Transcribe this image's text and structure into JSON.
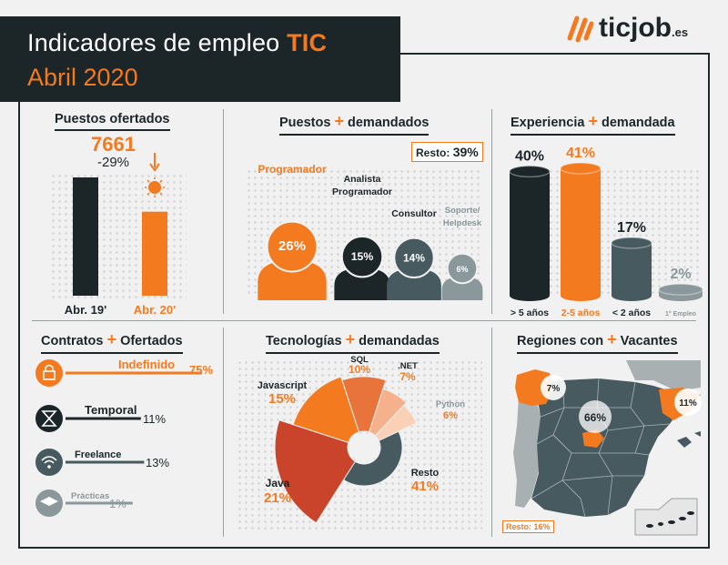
{
  "header": {
    "title_prefix": "Indicadores de empleo ",
    "title_highlight": "TIC",
    "subtitle": "Abril 2020"
  },
  "logo": {
    "text": "ticjob",
    "suffix": ".es"
  },
  "colors": {
    "orange": "#f47a20",
    "dark": "#1c2528",
    "slate": "#475a5f",
    "grey": "#8a989b",
    "bg": "#f1f1f1"
  },
  "puestos_ofertados": {
    "title": "Puestos ofertados",
    "value": "7661",
    "change": "-29%",
    "icon": "coronavirus-icon"
  },
  "puestos_demandados": {
    "title_pre": "Puestos",
    "title_post": "demandados",
    "resto_label": "Resto:",
    "resto_value": "39%"
  },
  "experiencia": {
    "title_pre": "Experiencia",
    "title_post": "demandada"
  },
  "contratos": {
    "title_pre": "Contratos",
    "title_post": "Ofertados",
    "items": [
      {
        "label": "Indefinido",
        "value": "75%",
        "icon": "lock-icon"
      },
      {
        "label": "Temporal",
        "value": "11%",
        "icon": "hourglass-icon"
      },
      {
        "label": "Freelance",
        "value": "13%",
        "icon": "wifi-icon"
      },
      {
        "label": "Prácticas",
        "value": "1%",
        "icon": "graduation-cap-icon"
      }
    ]
  },
  "tecnologias": {
    "title_pre": "Tecnologías",
    "title_post": "demandadas"
  },
  "regiones": {
    "title_pre": "Regiones con",
    "title_post": "Vacantes",
    "labels": [
      {
        "name": "galicia",
        "value": "7%"
      },
      {
        "name": "madrid",
        "value": "66%"
      },
      {
        "name": "cataluna",
        "value": "11%"
      }
    ],
    "resto": "Resto: 16%"
  },
  "chart_data": [
    {
      "type": "bar",
      "categories": [
        "Abr. 19'",
        "Abr. 20'"
      ],
      "values": [
        10790,
        7661
      ],
      "title": "Puestos ofertados",
      "annotations": [
        "7661",
        "-29%"
      ]
    },
    {
      "type": "scatter",
      "title": "Puestos demandados",
      "categories": [
        "Programador",
        "Analista Programador",
        "Consultor",
        "Soporte/ Helpdesk"
      ],
      "values": [
        26,
        15,
        14,
        6
      ],
      "labels": [
        "26%",
        "15%",
        "14%",
        "6%"
      ],
      "resto": 39
    },
    {
      "type": "bar",
      "title": "Experiencia demandada",
      "categories": [
        "> 5 años",
        "2-5 años",
        "< 2 años",
        "1° Empleo"
      ],
      "values": [
        40,
        41,
        17,
        2
      ],
      "labels": [
        "40%",
        "41%",
        "17%",
        "2%"
      ]
    },
    {
      "type": "bar",
      "title": "Contratos Ofertados",
      "categories": [
        "Indefinido",
        "Temporal",
        "Freelance",
        "Prácticas"
      ],
      "values": [
        75,
        11,
        13,
        1
      ]
    },
    {
      "type": "pie",
      "title": "Tecnologías demandadas",
      "categories": [
        "SQL",
        ".NET",
        "Python",
        "Resto",
        "Java",
        "Javascript"
      ],
      "values": [
        10,
        7,
        6,
        41,
        21,
        15
      ],
      "labels": [
        "10%",
        "7%",
        "6%",
        "41%",
        "21%",
        "15%"
      ],
      "colors": [
        "#e8743b",
        "#f5b08c",
        "#fad0b6",
        "#475a5f",
        "#c9442a",
        "#f47a20"
      ]
    }
  ]
}
